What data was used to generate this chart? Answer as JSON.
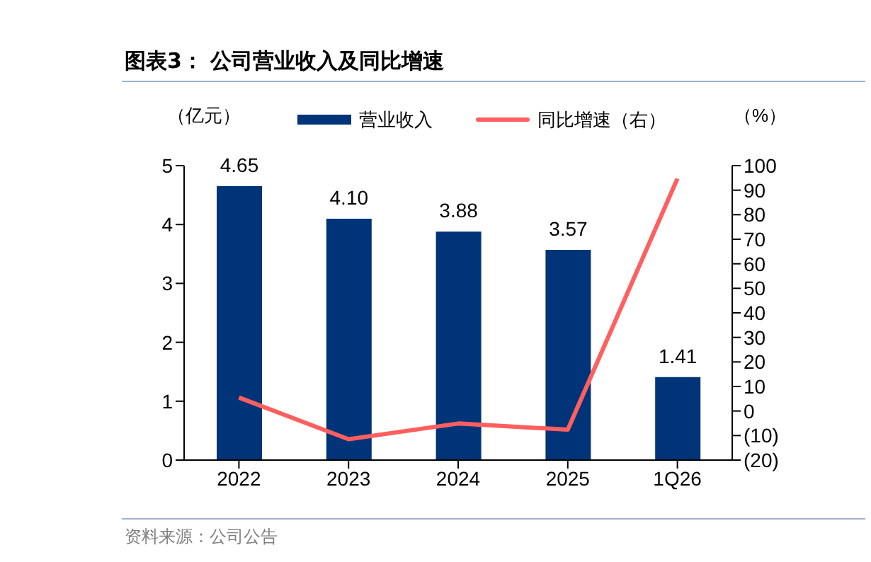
{
  "chart_data": {
    "type": "bar",
    "title": "图表3：  公司营业收入及同比增速",
    "ylabel": "（亿元）",
    "y2label": "（%）",
    "categories": [
      "2022",
      "2023",
      "2024",
      "2025",
      "1Q26"
    ],
    "series": [
      {
        "name": "营业收入",
        "color": "#003478",
        "values": [
          4.65,
          4.1,
          3.88,
          3.57,
          1.41
        ],
        "value_labels": [
          "4.65",
          "4.10",
          "3.88",
          "3.57",
          "1.41"
        ]
      },
      {
        "name": "同比增速（右）",
        "type": "line",
        "axis": "y2",
        "color": "#ff5f5f",
        "values": [
          5.5,
          -11.5,
          -5.1,
          -7.6,
          94.7
        ]
      }
    ],
    "ylim": [
      0,
      5
    ],
    "yticks": [
      0,
      1,
      2,
      3,
      4,
      5
    ],
    "y2lim": [
      -20,
      100
    ],
    "y2ticks": [
      {
        "value": -20,
        "label": "(20)"
      },
      {
        "value": -10,
        "label": "(10)"
      },
      0,
      10,
      20,
      30,
      40,
      50,
      60,
      70,
      80,
      90,
      100
    ],
    "legend": "top",
    "marker": "none",
    "line_style": "solid",
    "annotations": [
      "资料来源：公司公告"
    ]
  }
}
